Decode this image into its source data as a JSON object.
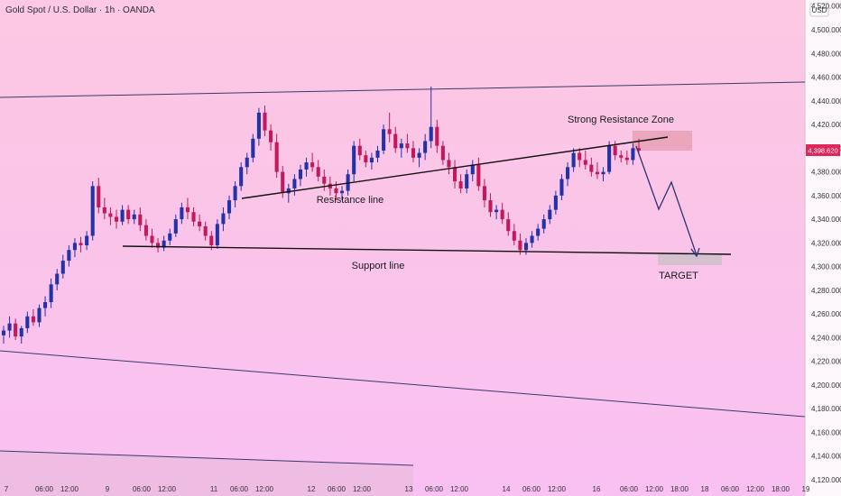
{
  "header": {
    "title": "Gold Spot / U.S. Dollar · 1h · OANDA",
    "currency": "USD"
  },
  "colors": {
    "bg_top": "#fcc8e2",
    "bg_bottom": "#f9c0f2",
    "up": "#2233aa",
    "down": "#c3185a",
    "line": "#111111",
    "zone": "#e8a0b4",
    "target_zone": "#cfc0cc",
    "price_tag": "#e0265a",
    "arrow": "#2c3470"
  },
  "chart_data": {
    "type": "candlestick",
    "ylim": [
      4120,
      4540
    ],
    "y_ticks": [
      "4,520.000",
      "4,500.000",
      "4,480.000",
      "4,460.000",
      "4,440.000",
      "4,420.000",
      "4,400.000",
      "4,380.000",
      "4,360.000",
      "4,340.000",
      "4,320.000",
      "4,300.000",
      "4,280.000",
      "4,260.000",
      "4,240.000",
      "4,220.000",
      "4,200.000",
      "4,180.000",
      "4,160.000",
      "4,140.000",
      "4,120.000"
    ],
    "x_ticks": [
      "7",
      "06:00",
      "12:00",
      "9",
      "06:00",
      "12:00",
      "11",
      "06:00",
      "12:00",
      "12",
      "06:00",
      "12:00",
      "13",
      "06:00",
      "12:00",
      "14",
      "06:00",
      "12:00",
      "16",
      "06:00",
      "12:00",
      "18:00",
      "18",
      "06:00",
      "12:00",
      "18:00",
      "19"
    ],
    "last_price": "4,398.620",
    "candles": [
      [
        4242,
        4250,
        4235,
        4246
      ],
      [
        4246,
        4258,
        4240,
        4252
      ],
      [
        4252,
        4256,
        4238,
        4241
      ],
      [
        4241,
        4250,
        4235,
        4248
      ],
      [
        4248,
        4262,
        4244,
        4258
      ],
      [
        4258,
        4264,
        4250,
        4253
      ],
      [
        4253,
        4268,
        4249,
        4265
      ],
      [
        4265,
        4275,
        4258,
        4270
      ],
      [
        4270,
        4290,
        4265,
        4285
      ],
      [
        4285,
        4298,
        4280,
        4294
      ],
      [
        4294,
        4310,
        4290,
        4305
      ],
      [
        4305,
        4318,
        4300,
        4314
      ],
      [
        4314,
        4324,
        4308,
        4320
      ],
      [
        4320,
        4325,
        4312,
        4318
      ],
      [
        4318,
        4330,
        4314,
        4326
      ],
      [
        4326,
        4372,
        4322,
        4368
      ],
      [
        4368,
        4375,
        4345,
        4350
      ],
      [
        4350,
        4358,
        4340,
        4345
      ],
      [
        4345,
        4350,
        4335,
        4342
      ],
      [
        4342,
        4348,
        4332,
        4338
      ],
      [
        4338,
        4352,
        4335,
        4348
      ],
      [
        4348,
        4352,
        4336,
        4340
      ],
      [
        4340,
        4348,
        4336,
        4344
      ],
      [
        4344,
        4350,
        4330,
        4335
      ],
      [
        4335,
        4340,
        4322,
        4326
      ],
      [
        4326,
        4332,
        4316,
        4320
      ],
      [
        4320,
        4324,
        4312,
        4316
      ],
      [
        4316,
        4326,
        4313,
        4322
      ],
      [
        4322,
        4332,
        4318,
        4328
      ],
      [
        4328,
        4344,
        4325,
        4340
      ],
      [
        4340,
        4354,
        4336,
        4350
      ],
      [
        4350,
        4358,
        4340,
        4346
      ],
      [
        4346,
        4350,
        4334,
        4338
      ],
      [
        4338,
        4344,
        4330,
        4334
      ],
      [
        4334,
        4338,
        4322,
        4326
      ],
      [
        4326,
        4330,
        4314,
        4318
      ],
      [
        4318,
        4340,
        4315,
        4336
      ],
      [
        4336,
        4350,
        4330,
        4345
      ],
      [
        4345,
        4360,
        4340,
        4356
      ],
      [
        4356,
        4372,
        4350,
        4368
      ],
      [
        4368,
        4388,
        4364,
        4384
      ],
      [
        4384,
        4396,
        4378,
        4392
      ],
      [
        4392,
        4412,
        4388,
        4408
      ],
      [
        4408,
        4434,
        4402,
        4430
      ],
      [
        4430,
        4436,
        4410,
        4415
      ],
      [
        4415,
        4420,
        4398,
        4405
      ],
      [
        4405,
        4412,
        4375,
        4380
      ],
      [
        4380,
        4385,
        4358,
        4362
      ],
      [
        4362,
        4370,
        4354,
        4366
      ],
      [
        4366,
        4378,
        4360,
        4374
      ],
      [
        4374,
        4386,
        4368,
        4382
      ],
      [
        4382,
        4392,
        4376,
        4388
      ],
      [
        4388,
        4396,
        4380,
        4384
      ],
      [
        4384,
        4390,
        4372,
        4376
      ],
      [
        4376,
        4382,
        4364,
        4370
      ],
      [
        4370,
        4376,
        4360,
        4366
      ],
      [
        4366,
        4372,
        4356,
        4362
      ],
      [
        4362,
        4368,
        4356,
        4364
      ],
      [
        4364,
        4382,
        4360,
        4378
      ],
      [
        4378,
        4406,
        4372,
        4402
      ],
      [
        4402,
        4408,
        4390,
        4394
      ],
      [
        4394,
        4398,
        4384,
        4388
      ],
      [
        4388,
        4396,
        4382,
        4392
      ],
      [
        4392,
        4402,
        4388,
        4398
      ],
      [
        4398,
        4420,
        4395,
        4416
      ],
      [
        4416,
        4430,
        4405,
        4412
      ],
      [
        4412,
        4418,
        4396,
        4400
      ],
      [
        4400,
        4408,
        4392,
        4404
      ],
      [
        4404,
        4412,
        4396,
        4400
      ],
      [
        4400,
        4406,
        4388,
        4392
      ],
      [
        4392,
        4400,
        4384,
        4396
      ],
      [
        4396,
        4412,
        4390,
        4406
      ],
      [
        4406,
        4452,
        4400,
        4418
      ],
      [
        4418,
        4424,
        4396,
        4402
      ],
      [
        4402,
        4406,
        4386,
        4390
      ],
      [
        4390,
        4396,
        4378,
        4384
      ],
      [
        4384,
        4390,
        4366,
        4372
      ],
      [
        4372,
        4378,
        4362,
        4366
      ],
      [
        4366,
        4382,
        4362,
        4378
      ],
      [
        4378,
        4390,
        4372,
        4386
      ],
      [
        4386,
        4392,
        4364,
        4368
      ],
      [
        4368,
        4374,
        4350,
        4356
      ],
      [
        4356,
        4362,
        4342,
        4346
      ],
      [
        4346,
        4352,
        4340,
        4348
      ],
      [
        4348,
        4354,
        4336,
        4340
      ],
      [
        4340,
        4346,
        4326,
        4330
      ],
      [
        4330,
        4336,
        4318,
        4322
      ],
      [
        4322,
        4328,
        4310,
        4314
      ],
      [
        4314,
        4324,
        4310,
        4320
      ],
      [
        4320,
        4330,
        4316,
        4326
      ],
      [
        4326,
        4336,
        4322,
        4332
      ],
      [
        4332,
        4344,
        4328,
        4340
      ],
      [
        4340,
        4352,
        4336,
        4348
      ],
      [
        4348,
        4364,
        4344,
        4360
      ],
      [
        4360,
        4378,
        4356,
        4374
      ],
      [
        4374,
        4388,
        4368,
        4384
      ],
      [
        4384,
        4400,
        4380,
        4396
      ],
      [
        4396,
        4400,
        4384,
        4390
      ],
      [
        4390,
        4398,
        4382,
        4386
      ],
      [
        4386,
        4392,
        4376,
        4380
      ],
      [
        4380,
        4388,
        4374,
        4378
      ],
      [
        4378,
        4384,
        4372,
        4380
      ],
      [
        4380,
        4406,
        4378,
        4402
      ],
      [
        4402,
        4406,
        4390,
        4394
      ],
      [
        4394,
        4398,
        4388,
        4392
      ],
      [
        4392,
        4398,
        4386,
        4390
      ],
      [
        4390,
        4404,
        4386,
        4400
      ],
      [
        4400,
        4408,
        4394,
        4398
      ]
    ]
  },
  "annotations": {
    "strong_resistance": "Strong Resistance Zone",
    "resistance_line": "Resistance line",
    "support_line": "Support line",
    "target": "TARGET"
  }
}
